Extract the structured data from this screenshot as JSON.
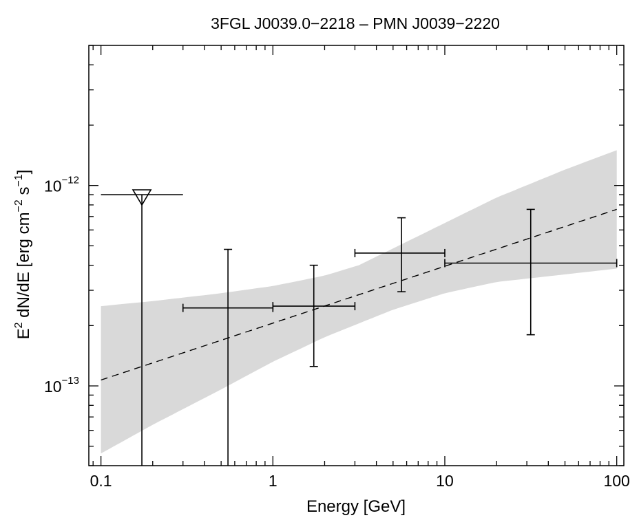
{
  "chart_data": {
    "type": "scatter",
    "title": "3FGL J0039.0−2218 – PMN J0039−2220",
    "xlabel": "Energy [GeV]",
    "ylabel": {
      "base": "E",
      "base_sup": "2",
      "mid": " dN/dE [erg cm",
      "mid_sup": "−2",
      "mid2": " s",
      "mid2_sup": "−1",
      "end": "]"
    },
    "x_scale": "log",
    "y_scale": "log",
    "xlim": [
      0.085,
      110
    ],
    "ylim": [
      4e-14,
      5e-12
    ],
    "x_ticks": [
      {
        "value": 0.1,
        "label": "0.1"
      },
      {
        "value": 1,
        "label": "1"
      },
      {
        "value": 10,
        "label": "10"
      },
      {
        "value": 100,
        "label": "100"
      }
    ],
    "y_ticks": [
      {
        "value": 1e-13,
        "base": "10",
        "exp": "−13"
      },
      {
        "value": 1e-12,
        "base": "10",
        "exp": "−12"
      }
    ],
    "grid": false,
    "model_line": {
      "style": "dashed",
      "x": [
        0.1,
        100
      ],
      "y": [
        1.07e-13,
        7.6e-13
      ]
    },
    "confidence_band": {
      "color": "#d9d9d9",
      "x": [
        0.1,
        0.2,
        0.5,
        1,
        2,
        3.16,
        5,
        10,
        20,
        50,
        100
      ],
      "upper": [
        2.5e-13,
        2.65e-13,
        2.9e-13,
        3.15e-13,
        3.55e-13,
        4e-13,
        4.85e-13,
        6.5e-13,
        8.7e-13,
        1.2e-12,
        1.5e-12
      ],
      "lower": [
        4.6e-14,
        6.4e-14,
        9.6e-14,
        1.32e-13,
        1.75e-13,
        2.05e-13,
        2.4e-13,
        2.9e-13,
        3.3e-13,
        3.6e-13,
        3.85e-13
      ]
    },
    "data_points": [
      {
        "x": 0.548,
        "x_lo": 0.3,
        "x_hi": 1.0,
        "y": 2.45e-13,
        "y_lo": 3e-14,
        "y_hi": 4.8e-13
      },
      {
        "x": 1.73,
        "x_lo": 1.0,
        "x_hi": 3.0,
        "y": 2.5e-13,
        "y_lo": 1.25e-13,
        "y_hi": 4e-13
      },
      {
        "x": 5.6,
        "x_lo": 3.0,
        "x_hi": 10.0,
        "y": 4.6e-13,
        "y_lo": 2.95e-13,
        "y_hi": 6.9e-13
      },
      {
        "x": 31.6,
        "x_lo": 10.0,
        "x_hi": 100.0,
        "y": 4.1e-13,
        "y_lo": 1.8e-13,
        "y_hi": 7.6e-13
      }
    ],
    "upper_limits": [
      {
        "x": 0.173,
        "x_lo": 0.1,
        "x_hi": 0.3,
        "y": 9e-13
      }
    ]
  }
}
